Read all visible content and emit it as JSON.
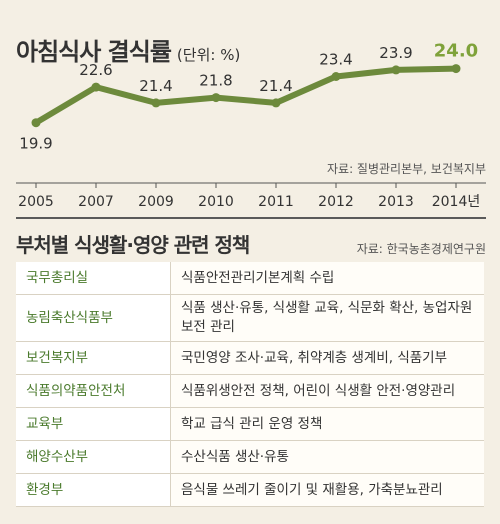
{
  "chart_data": {
    "type": "line",
    "title": "아침식사 결식률",
    "unit": "(단위: %)",
    "categories": [
      "2005",
      "2007",
      "2009",
      "2010",
      "2011",
      "2012",
      "2013",
      "2014년"
    ],
    "values": [
      19.9,
      22.6,
      21.4,
      21.8,
      21.4,
      23.4,
      23.9,
      24.0
    ],
    "value_labels": [
      "19.9",
      "22.6",
      "21.4",
      "21.8",
      "21.4",
      "23.4",
      "23.9",
      "24.0"
    ],
    "highlight_index": 7,
    "ylim": [
      19.5,
      24.5
    ],
    "source": "자료: 질병관리본부, 보건복지부"
  },
  "table": {
    "title": "부처별 식생활·영양 관련 정책",
    "source": "자료: 한국농촌경제연구원",
    "rows": [
      {
        "org": "국무총리실",
        "policy": "식품안전관리기본계획 수립"
      },
      {
        "org": "농림축산식품부",
        "policy": "식품 생산·유통, 식생활 교육, 식문화 확산, 농업자원보전 관리"
      },
      {
        "org": "보건복지부",
        "policy": "국민영양 조사·교육, 취약계층 생계비, 식품기부"
      },
      {
        "org": "식품의약품안전처",
        "policy": "식품위생안전 정책, 어린이 식생활 안전·영양관리"
      },
      {
        "org": "교육부",
        "policy": "학교 급식 관리 운영 정책"
      },
      {
        "org": "해양수산부",
        "policy": "수산식품 생산·유통"
      },
      {
        "org": "환경부",
        "policy": "음식물 쓰레기 줄이기 및 재활용, 가축분뇨관리"
      }
    ]
  },
  "colors": {
    "line": "#6d8a3c",
    "highlight_label": "#7fa23a",
    "label": "#333333",
    "axis": "#555555"
  }
}
